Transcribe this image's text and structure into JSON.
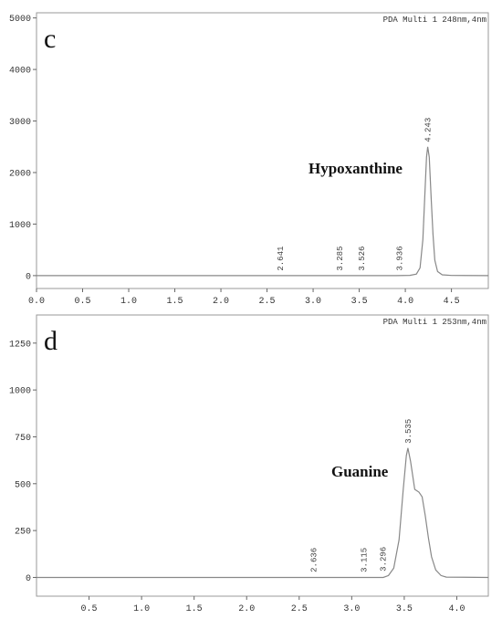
{
  "chart_data": [
    {
      "type": "line",
      "panel_label": "c",
      "detector": "PDA Multi 1 248nm,4nm",
      "compound_label": "Hypoxanthine",
      "xlim": [
        0.0,
        4.9
      ],
      "ylim": [
        -250,
        5100
      ],
      "x_ticks": [
        0.0,
        0.5,
        1.0,
        1.5,
        2.0,
        2.5,
        3.0,
        3.5,
        4.0,
        4.5
      ],
      "x_tick_labels": [
        "0.0",
        "0.5",
        "1.0",
        "1.5",
        "2.0",
        "2.5",
        "3.0",
        "3.5",
        "4.0",
        "4.5"
      ],
      "y_ticks": [
        0,
        1000,
        2000,
        3000,
        4000,
        5000
      ],
      "y_tick_labels": [
        "0",
        "1000",
        "2000",
        "3000",
        "4000",
        "5000"
      ],
      "peaks": [
        {
          "rt": 2.641,
          "label": "2.641",
          "height": 5
        },
        {
          "rt": 3.285,
          "label": "3.285",
          "height": 5
        },
        {
          "rt": 3.526,
          "label": "3.526",
          "height": 5
        },
        {
          "rt": 3.936,
          "label": "3.936",
          "height": 8
        },
        {
          "rt": 4.243,
          "label": "4.243",
          "height": 2500
        }
      ],
      "trace": [
        [
          0.0,
          0
        ],
        [
          3.9,
          0
        ],
        [
          4.05,
          5
        ],
        [
          4.12,
          30
        ],
        [
          4.16,
          150
        ],
        [
          4.19,
          700
        ],
        [
          4.21,
          1500
        ],
        [
          4.23,
          2300
        ],
        [
          4.243,
          2500
        ],
        [
          4.26,
          2300
        ],
        [
          4.28,
          1500
        ],
        [
          4.3,
          800
        ],
        [
          4.32,
          300
        ],
        [
          4.35,
          80
        ],
        [
          4.4,
          15
        ],
        [
          4.5,
          3
        ],
        [
          4.9,
          0
        ]
      ]
    },
    {
      "type": "line",
      "panel_label": "d",
      "detector": "PDA Multi 1 253nm,4nm",
      "compound_label": "Guanine",
      "xlim": [
        0.0,
        4.3
      ],
      "ylim": [
        -100,
        1400
      ],
      "x_ticks": [
        0.5,
        1.0,
        1.5,
        2.0,
        2.5,
        3.0,
        3.5,
        4.0
      ],
      "x_tick_labels": [
        "0.5",
        "1.0",
        "1.5",
        "2.0",
        "2.5",
        "3.0",
        "3.5",
        "4.0"
      ],
      "y_ticks": [
        0,
        250,
        500,
        750,
        1000,
        1250
      ],
      "y_tick_labels": [
        "0",
        "250",
        "500",
        "750",
        "1000",
        "1250"
      ],
      "peaks": [
        {
          "rt": 2.636,
          "label": "2.636",
          "height": 3
        },
        {
          "rt": 3.115,
          "label": "3.115",
          "height": 3
        },
        {
          "rt": 3.296,
          "label": "3.296",
          "height": 8
        },
        {
          "rt": 3.535,
          "label": "3.535",
          "height": 690
        }
      ],
      "trace": [
        [
          0.0,
          0
        ],
        [
          3.3,
          0
        ],
        [
          3.35,
          10
        ],
        [
          3.4,
          50
        ],
        [
          3.45,
          200
        ],
        [
          3.49,
          470
        ],
        [
          3.52,
          650
        ],
        [
          3.535,
          690
        ],
        [
          3.56,
          620
        ],
        [
          3.6,
          470
        ],
        [
          3.64,
          455
        ],
        [
          3.67,
          430
        ],
        [
          3.7,
          330
        ],
        [
          3.73,
          210
        ],
        [
          3.76,
          110
        ],
        [
          3.8,
          40
        ],
        [
          3.85,
          10
        ],
        [
          3.9,
          2
        ],
        [
          4.3,
          0
        ]
      ]
    }
  ]
}
